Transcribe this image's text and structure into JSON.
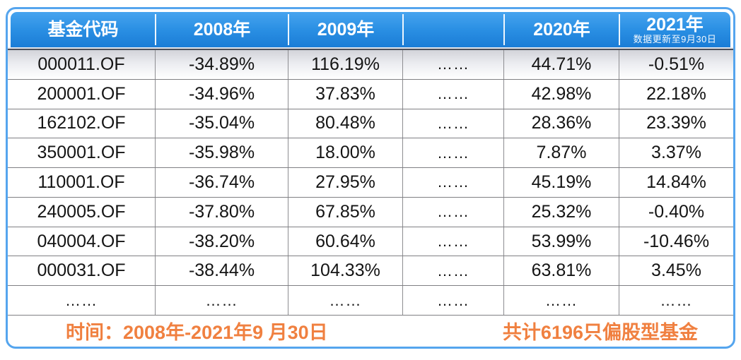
{
  "chart_data": {
    "type": "table",
    "columns": [
      {
        "label": "基金代码",
        "note": ""
      },
      {
        "label": "2008年",
        "note": ""
      },
      {
        "label": "2009年",
        "note": ""
      },
      {
        "label": "",
        "note": ""
      },
      {
        "label": "2020年",
        "note": ""
      },
      {
        "label": "2021年",
        "note": "数据更新至9月30日"
      }
    ],
    "rows": [
      [
        "000011.OF",
        "-34.89%",
        "116.19%",
        "……",
        "44.71%",
        "-0.51%"
      ],
      [
        "200001.OF",
        "-34.96%",
        "37.83%",
        "……",
        "42.98%",
        "22.18%"
      ],
      [
        "162102.OF",
        "-35.04%",
        "80.48%",
        "……",
        "28.36%",
        "23.39%"
      ],
      [
        "350001.OF",
        "-35.98%",
        "18.00%",
        "……",
        "7.87%",
        "3.37%"
      ],
      [
        "110001.OF",
        "-36.74%",
        "27.95%",
        "……",
        "45.19%",
        "14.84%"
      ],
      [
        "240005.OF",
        "-37.80%",
        "67.85%",
        "……",
        "25.32%",
        "-0.40%"
      ],
      [
        "040004.OF",
        "-38.20%",
        "60.64%",
        "……",
        "53.99%",
        "-10.46%"
      ],
      [
        "000031.OF",
        "-38.44%",
        "104.33%",
        "……",
        "63.81%",
        "3.45%"
      ],
      [
        "……",
        "……",
        "……",
        "……",
        "……",
        "……"
      ]
    ],
    "annotations": [
      "时间：2008年-2021年9 月30日",
      "共计6196只偏股型基金"
    ]
  },
  "footer": {
    "left": "时间：2008年-2021年9 月30日",
    "right": "共计6196只偏股型基金"
  },
  "colors": {
    "header_blue_top": "#47a4ef",
    "header_blue_bottom": "#1a7cd6",
    "outer_border_blue": "#55a5ee",
    "footer_orange": "#f08040",
    "first_row_gray": "#d2d3d9",
    "grid_line_gray": "#8d8d91",
    "dark_rule": "#4d4f59"
  }
}
